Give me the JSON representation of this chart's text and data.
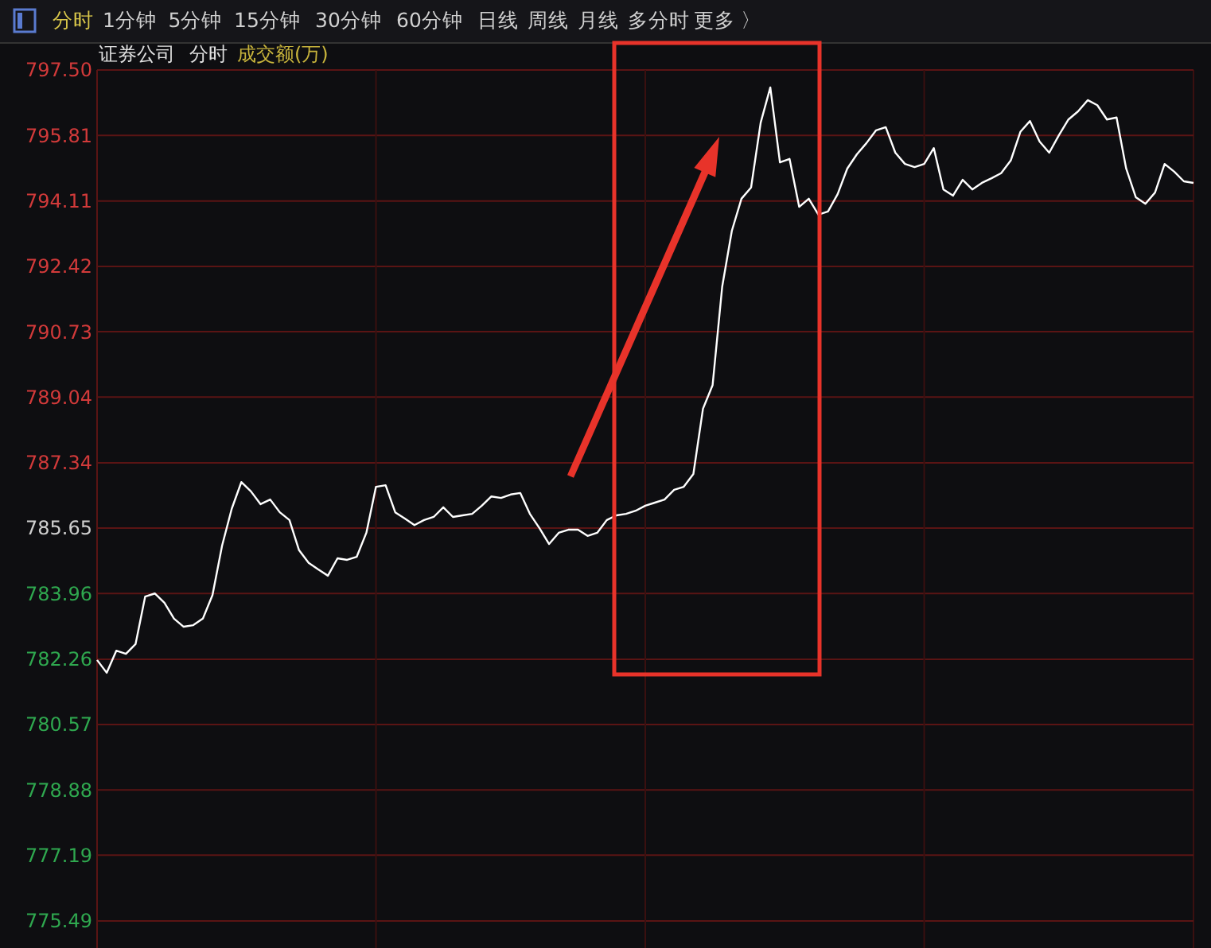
{
  "chart_data": {
    "type": "line",
    "title": "证券公司",
    "annotations": [
      "分时",
      "1分钟",
      "5分钟",
      "15分钟",
      "30分钟",
      "60分钟",
      "日线",
      "周线",
      "月线",
      "多分时",
      "更多 〉",
      "分时",
      "成交额(万)"
    ],
    "categories": [
      null,
      null,
      null,
      null,
      null,
      null,
      null,
      null,
      null,
      null,
      null,
      null,
      null,
      null,
      null,
      null,
      null,
      null,
      null,
      null,
      null,
      null,
      null,
      null,
      null,
      null,
      null,
      null,
      null,
      null,
      null,
      null,
      null,
      null,
      null,
      null,
      null,
      null,
      null,
      null,
      null,
      null,
      null,
      null,
      null,
      null,
      null,
      null,
      null,
      null,
      null,
      null,
      null,
      null,
      null,
      null,
      null,
      null,
      null,
      null,
      null,
      null,
      null,
      null,
      null,
      null,
      null,
      null,
      null,
      null,
      null,
      null,
      null,
      null,
      null,
      null,
      null,
      null,
      null,
      null,
      null,
      null,
      null,
      null,
      null,
      null,
      null,
      null,
      null,
      null,
      null,
      null,
      null,
      null,
      null,
      null,
      null,
      null,
      null,
      null,
      null,
      null,
      null,
      null,
      null,
      null,
      null,
      null,
      null,
      null,
      null,
      null,
      null,
      null,
      null
    ],
    "series": [
      {
        "color": "#ffffff",
        "values": [
          782.24,
          781.91,
          782.48,
          782.4,
          782.65,
          783.88,
          783.96,
          783.72,
          783.31,
          783.1,
          783.14,
          783.31,
          783.92,
          785.2,
          786.15,
          786.84,
          786.6,
          786.27,
          786.39,
          786.06,
          785.86,
          785.08,
          784.75,
          784.58,
          784.42,
          784.87,
          784.83,
          784.91,
          785.53,
          786.72,
          786.76,
          786.06,
          785.9,
          785.73,
          785.86,
          785.94,
          786.19,
          785.94,
          785.98,
          786.02,
          786.23,
          786.47,
          786.43,
          786.52,
          786.56,
          786.02,
          785.65,
          785.24,
          785.53,
          785.61,
          785.61,
          785.45,
          785.53,
          785.86,
          785.98,
          786.02,
          786.1,
          786.23,
          786.31,
          786.39,
          786.64,
          786.72,
          787.05,
          788.74,
          789.35,
          791.9,
          793.34,
          794.17,
          794.46,
          796.14,
          797.05,
          795.11,
          795.2,
          793.96,
          794.17,
          793.76,
          793.84,
          794.29,
          794.95,
          795.32,
          795.61,
          795.94,
          796.02,
          795.36,
          795.07,
          794.99,
          795.07,
          795.48,
          794.41,
          794.25,
          794.66,
          794.41,
          794.58,
          794.7,
          794.83,
          795.16,
          795.9,
          796.18,
          795.65,
          795.36,
          795.81,
          796.22,
          796.43,
          796.72,
          796.59,
          796.22,
          796.27,
          794.95,
          794.21,
          794.04,
          794.33,
          795.07,
          794.87,
          794.62,
          794.58
        ]
      }
    ],
    "ylim": [
      775.49,
      797.5
    ],
    "yticks": [
      {
        "value": 797.5,
        "label": "797.50"
      },
      795.81,
      794.11,
      792.42,
      790.73,
      789.04,
      787.34,
      785.65,
      783.96,
      782.26,
      780.57,
      778.88,
      777.19,
      775.49
    ],
    "grid": true,
    "marker": "none",
    "line_style": "solid"
  }
}
